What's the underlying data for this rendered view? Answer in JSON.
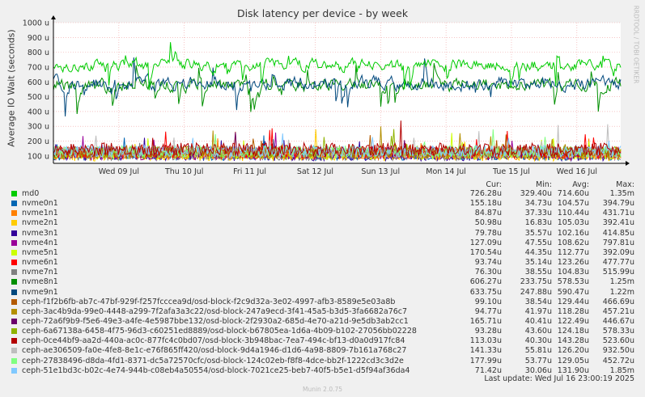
{
  "title": "Disk latency per device - by week",
  "vendor": "RRDTOOL / TOBI OETIKER",
  "footer": "Munin 2.0.75",
  "last_update": "Last update: Wed Jul 16 23:00:19 2025",
  "columns": {
    "cur": "Cur:",
    "min": "Min:",
    "avg": "Avg:",
    "max": "Max:"
  },
  "chart_data": {
    "type": "line",
    "title": "Disk latency per device - by week",
    "ylabel": "Average IO Wait (seconds)",
    "y_ticks": [
      "1000 u",
      "900 u",
      "800 u",
      "700 u",
      "600 u",
      "500 u",
      "400 u",
      "300 u",
      "200 u",
      "100 u"
    ],
    "y_tick_values_us": [
      1000,
      900,
      800,
      700,
      600,
      500,
      400,
      300,
      200,
      100
    ],
    "ylim_us": [
      50,
      1000
    ],
    "x_ticks": [
      "Wed 09 Jul",
      "Thu 10 Jul",
      "Fri 11 Jul",
      "Sat 12 Jul",
      "Sun 13 Jul",
      "Mon 14 Jul",
      "Tue 15 Jul",
      "Wed 16 Jul"
    ],
    "x_tick_days": [
      1,
      2,
      3,
      4,
      5,
      6,
      7,
      8
    ],
    "xlim_days": [
      0,
      8.67
    ],
    "grid": true,
    "legend_placement": "bottom",
    "series": [
      {
        "name": "md0",
        "color": "#00cc00",
        "cur": "726.28u",
        "min": "329.40u",
        "avg": "714.60u",
        "max": "1.35m",
        "base": 715,
        "amp": 70
      },
      {
        "name": "nvme0n1",
        "color": "#0066b3",
        "cur": "155.18u",
        "min": "34.73u",
        "avg": "104.57u",
        "max": "394.79u",
        "base": 105,
        "amp": 35
      },
      {
        "name": "nvme1n1",
        "color": "#ff8000",
        "cur": "84.87u",
        "min": "37.33u",
        "avg": "110.44u",
        "max": "431.71u",
        "base": 110,
        "amp": 35
      },
      {
        "name": "nvme2n1",
        "color": "#ffcc00",
        "cur": "50.98u",
        "min": "16.83u",
        "avg": "105.03u",
        "max": "392.41u",
        "base": 105,
        "amp": 40
      },
      {
        "name": "nvme3n1",
        "color": "#330099",
        "cur": "79.78u",
        "min": "35.57u",
        "avg": "102.16u",
        "max": "414.85u",
        "base": 102,
        "amp": 35
      },
      {
        "name": "nvme4n1",
        "color": "#990099",
        "cur": "127.09u",
        "min": "47.55u",
        "avg": "108.62u",
        "max": "797.81u",
        "base": 108,
        "amp": 35
      },
      {
        "name": "nvme5n1",
        "color": "#ccff00",
        "cur": "170.54u",
        "min": "44.35u",
        "avg": "112.77u",
        "max": "392.09u",
        "base": 112,
        "amp": 35
      },
      {
        "name": "nvme6n1",
        "color": "#ff0000",
        "cur": "93.74u",
        "min": "35.14u",
        "avg": "123.26u",
        "max": "477.77u",
        "base": 123,
        "amp": 40
      },
      {
        "name": "nvme7n1",
        "color": "#808080",
        "cur": "76.30u",
        "min": "38.55u",
        "avg": "104.83u",
        "max": "515.99u",
        "base": 104,
        "amp": 35
      },
      {
        "name": "nvme8n1",
        "color": "#008f00",
        "cur": "606.27u",
        "min": "233.75u",
        "avg": "578.53u",
        "max": "1.25m",
        "base": 578,
        "amp": 80
      },
      {
        "name": "nvme9n1",
        "color": "#00487d",
        "cur": "633.75u",
        "min": "247.88u",
        "avg": "590.47u",
        "max": "1.22m",
        "base": 590,
        "amp": 80
      },
      {
        "name": "ceph-f1f2b6fb-ab7c-47bf-929f-f257fcccea9d/osd-block-f2c9d32a-3e02-4997-afb3-8589e5e03a8b",
        "color": "#b35a00",
        "cur": "99.10u",
        "min": "38.54u",
        "avg": "129.44u",
        "max": "466.69u",
        "base": 129,
        "amp": 40
      },
      {
        "name": "ceph-3ac4b9da-99e0-4448-a299-7f2afa3a3c22/osd-block-247a9ecd-3f41-45a5-b3d5-3fa6682a76c7",
        "color": "#b38f00",
        "cur": "94.77u",
        "min": "41.97u",
        "avg": "118.28u",
        "max": "457.21u",
        "base": 118,
        "amp": 38
      },
      {
        "name": "ceph-72a6f9b9-f5e6-49e3-a4fe-4e5987bbe132/osd-block-2f2930a2-685d-4e70-a21d-9e5db3ab2cc1",
        "color": "#6b006b",
        "cur": "165.71u",
        "min": "40.41u",
        "avg": "122.49u",
        "max": "446.67u",
        "base": 122,
        "amp": 38
      },
      {
        "name": "ceph-6a67138a-6458-4f75-96d3-c60251ed8889/osd-block-b67805ea-1d6a-4b09-b102-27056bb02228",
        "color": "#8fb300",
        "cur": "93.28u",
        "min": "43.60u",
        "avg": "124.18u",
        "max": "578.33u",
        "base": 124,
        "amp": 40
      },
      {
        "name": "ceph-0ce44bf9-aa2d-440a-ac0c-877fc4c0bd07/osd-block-3b948bac-7ea7-494c-bf13-d0a0d917fc84",
        "color": "#b30000",
        "cur": "113.03u",
        "min": "40.30u",
        "avg": "143.28u",
        "max": "523.60u",
        "base": 143,
        "amp": 45
      },
      {
        "name": "ceph-ae306509-fa0e-4fe8-8e1c-e76f865ff420/osd-block-9d4a1946-d1d6-4a98-8809-7b161a768c27",
        "color": "#bebebe",
        "cur": "141.33u",
        "min": "55.81u",
        "avg": "126.20u",
        "max": "932.50u",
        "base": 126,
        "amp": 40
      },
      {
        "name": "ceph-27838496-d8da-4fd1-8371-dc5a72570cfc/osd-block-124c02eb-f8f8-4dce-bb2f-1222cd3c3d2e",
        "color": "#80ff80",
        "cur": "177.99u",
        "min": "53.77u",
        "avg": "129.05u",
        "max": "452.72u",
        "base": 129,
        "amp": 40
      },
      {
        "name": "ceph-51e1bd3c-b02c-4e74-944b-c08eb4a50554/osd-block-7021ce25-beb7-40f5-b5e1-d5f94af36da4",
        "color": "#80c9ff",
        "cur": "71.42u",
        "min": "30.06u",
        "avg": "131.90u",
        "max": "1.85m",
        "base": 131,
        "amp": 40
      }
    ]
  }
}
